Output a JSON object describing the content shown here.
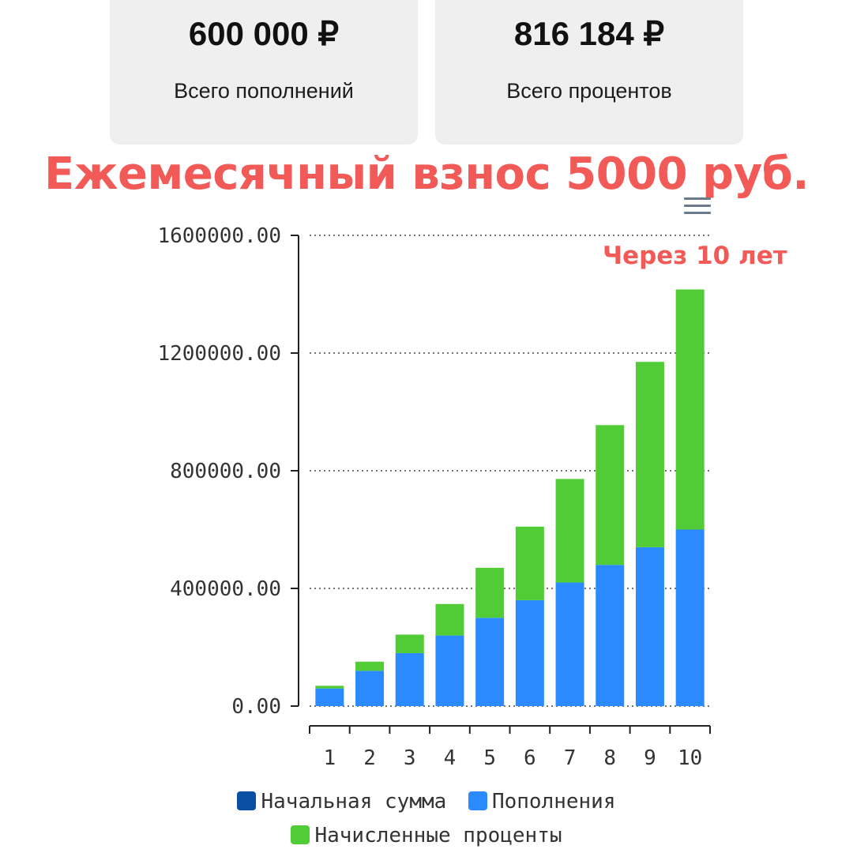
{
  "cards": [
    {
      "amount": "600 000 ₽",
      "caption": "Всего пополнений"
    },
    {
      "amount": "816 184 ₽",
      "caption": "Всего процентов"
    }
  ],
  "headline": "Ежемесячный взнос 5000 руб.",
  "note": "Через 10 лет",
  "chart_data": {
    "type": "bar",
    "stacked": true,
    "categories": [
      "1",
      "2",
      "3",
      "4",
      "5",
      "6",
      "7",
      "8",
      "9",
      "10"
    ],
    "y_ticks": [
      "0.00",
      "400000.00",
      "800000.00",
      "1200000.00",
      "1600000.00"
    ],
    "ylim": [
      0,
      1600000
    ],
    "grid": true,
    "legend_position": "bottom",
    "series": [
      {
        "name": "Начальная сумма",
        "color": "#0a4fa3",
        "values": [
          0,
          0,
          0,
          0,
          0,
          0,
          0,
          0,
          0,
          0
        ]
      },
      {
        "name": "Пополнения",
        "color": "#2b8aff",
        "values": [
          60000,
          120000,
          180000,
          240000,
          300000,
          360000,
          420000,
          480000,
          540000,
          600000
        ]
      },
      {
        "name": "Начисленные проценты",
        "color": "#52cc36",
        "values": [
          9000,
          31000,
          63000,
          107000,
          170000,
          250000,
          352000,
          475000,
          630000,
          816184
        ]
      }
    ]
  }
}
